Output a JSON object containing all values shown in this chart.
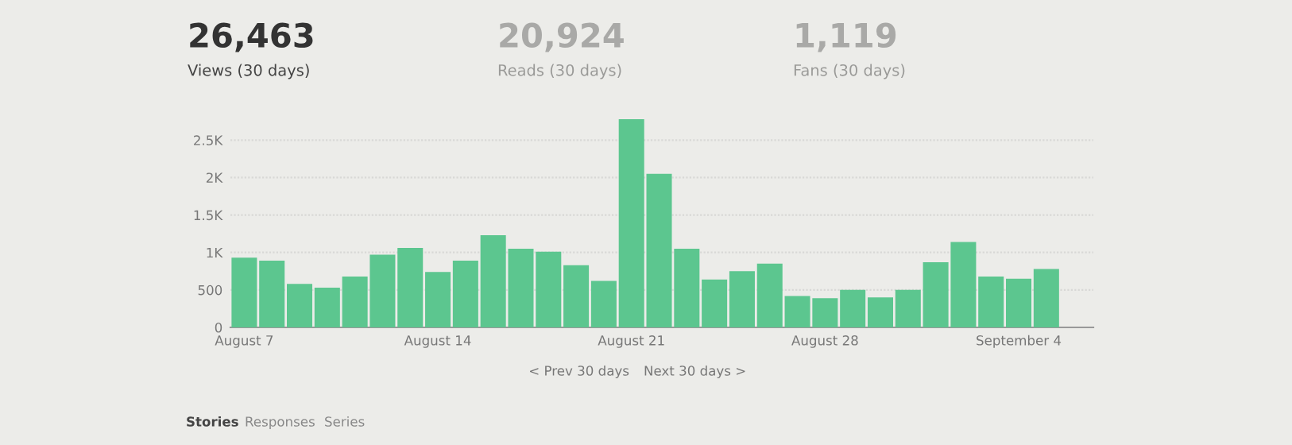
{
  "chart_data": {
    "type": "bar",
    "categories": [
      "August 7",
      null,
      null,
      null,
      null,
      null,
      null,
      "August 14",
      null,
      null,
      null,
      null,
      null,
      null,
      "August 21",
      null,
      null,
      null,
      null,
      null,
      null,
      "August 28",
      null,
      null,
      null,
      null,
      null,
      null,
      "September 4",
      null
    ],
    "values": [
      930,
      890,
      580,
      530,
      680,
      970,
      1060,
      740,
      890,
      1230,
      1050,
      1010,
      830,
      620,
      2780,
      2050,
      1050,
      640,
      750,
      850,
      420,
      390,
      500,
      400,
      500,
      870,
      1140,
      680,
      650,
      780
    ],
    "color": "#5cc68f",
    "ylim": [
      0,
      2800
    ],
    "yticks": [
      0,
      500,
      {
        "value": 1000,
        "label": "1K"
      },
      {
        "value": 1500,
        "label": "1.5K"
      },
      {
        "value": 2000,
        "label": "2K"
      },
      {
        "value": 2500,
        "label": "2.5K"
      }
    ],
    "grid": "y",
    "annotations": [
      "26,463",
      "Views (30 days)",
      "20,924",
      "Reads (30 days)",
      "1,119",
      "Fans (30 days)",
      "< Prev 30 days",
      "Next 30 days >",
      "Stories",
      "Responses",
      "Series"
    ]
  }
}
